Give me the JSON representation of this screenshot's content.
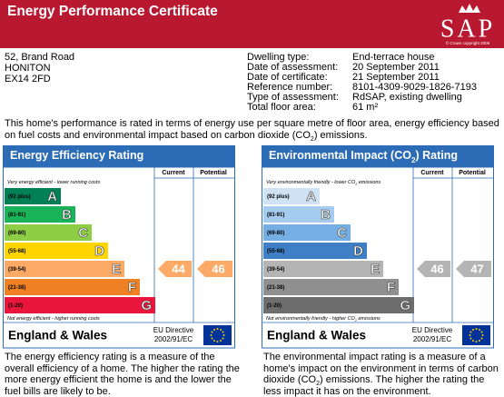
{
  "header": {
    "title": "Energy Performance Certificate",
    "logo": "SAP",
    "copyright": "© Crown copyright 2009"
  },
  "address": [
    "52, Brand Road",
    "HONITON",
    "EX14 2FD"
  ],
  "details": [
    {
      "label": "Dwelling type:",
      "value": "End-terrace house"
    },
    {
      "label": "Date of assessment:",
      "value": "20 September 2011"
    },
    {
      "label": "Date of certificate:",
      "value": "21 September 2011"
    },
    {
      "label": "Reference number:",
      "value": "8101-4309-9029-1826-7193"
    },
    {
      "label": "Type of assessment:",
      "value": "RdSAP, existing dwelling"
    },
    {
      "label": "Total floor area:",
      "value": "61 m²"
    }
  ],
  "intro": [
    "This home's performance is rated in terms of energy use per square metre of floor area, energy efficiency based on fuel costs and environmental impact based on carbon dioxide (CO",
    "2",
    ") emissions."
  ],
  "panels": [
    {
      "title": [
        "Energy Efficiency Rating"
      ],
      "current_header": "Current",
      "potential_header": "Potential",
      "top_note": [
        "Very energy efficient - lower running costs"
      ],
      "bottom_note": [
        "Not energy efficient - higher running costs"
      ],
      "bands": [
        {
          "range": "(92 plus)",
          "letter": "A"
        },
        {
          "range": "(81-91)",
          "letter": "B"
        },
        {
          "range": "(69-80)",
          "letter": "C"
        },
        {
          "range": "(55-68)",
          "letter": "D"
        },
        {
          "range": "(39-54)",
          "letter": "E"
        },
        {
          "range": "(21-38)",
          "letter": "F"
        },
        {
          "range": "(1-20)",
          "letter": "G"
        }
      ],
      "current": 44,
      "potential": 46,
      "region": "England & Wales",
      "directive": [
        "EU Directive",
        "2002/91/EC"
      ],
      "description": [
        "The energy efficiency rating is a measure of the overall efficiency of a home. The higher the rating the more energy efficient the home is and the lower the fuel bills are likely to be."
      ]
    },
    {
      "title": [
        "Environmental Impact (CO",
        "2",
        ") Rating"
      ],
      "current_header": "Current",
      "potential_header": "Potential",
      "top_note": [
        "Very environmentally friendly - lower CO",
        "2",
        " emissions"
      ],
      "bottom_note": [
        "Not environmentally friendly - higher CO",
        "2",
        " emissions"
      ],
      "bands": [
        {
          "range": "(92 plus)",
          "letter": "A"
        },
        {
          "range": "(81-91)",
          "letter": "B"
        },
        {
          "range": "(69-80)",
          "letter": "C"
        },
        {
          "range": "(55-68)",
          "letter": "D"
        },
        {
          "range": "(39-54)",
          "letter": "E"
        },
        {
          "range": "(21-38)",
          "letter": "F"
        },
        {
          "range": "(1-20)",
          "letter": "G"
        }
      ],
      "current": 46,
      "potential": 47,
      "region": "England & Wales",
      "directive": [
        "EU Directive",
        "2002/91/EC"
      ],
      "description": [
        "The environmental impact rating is a measure of a home's impact on the environment in terms of carbon dioxide (CO",
        "2",
        ") emissions. The higher the rating the less impact it has on the environment."
      ]
    }
  ]
}
